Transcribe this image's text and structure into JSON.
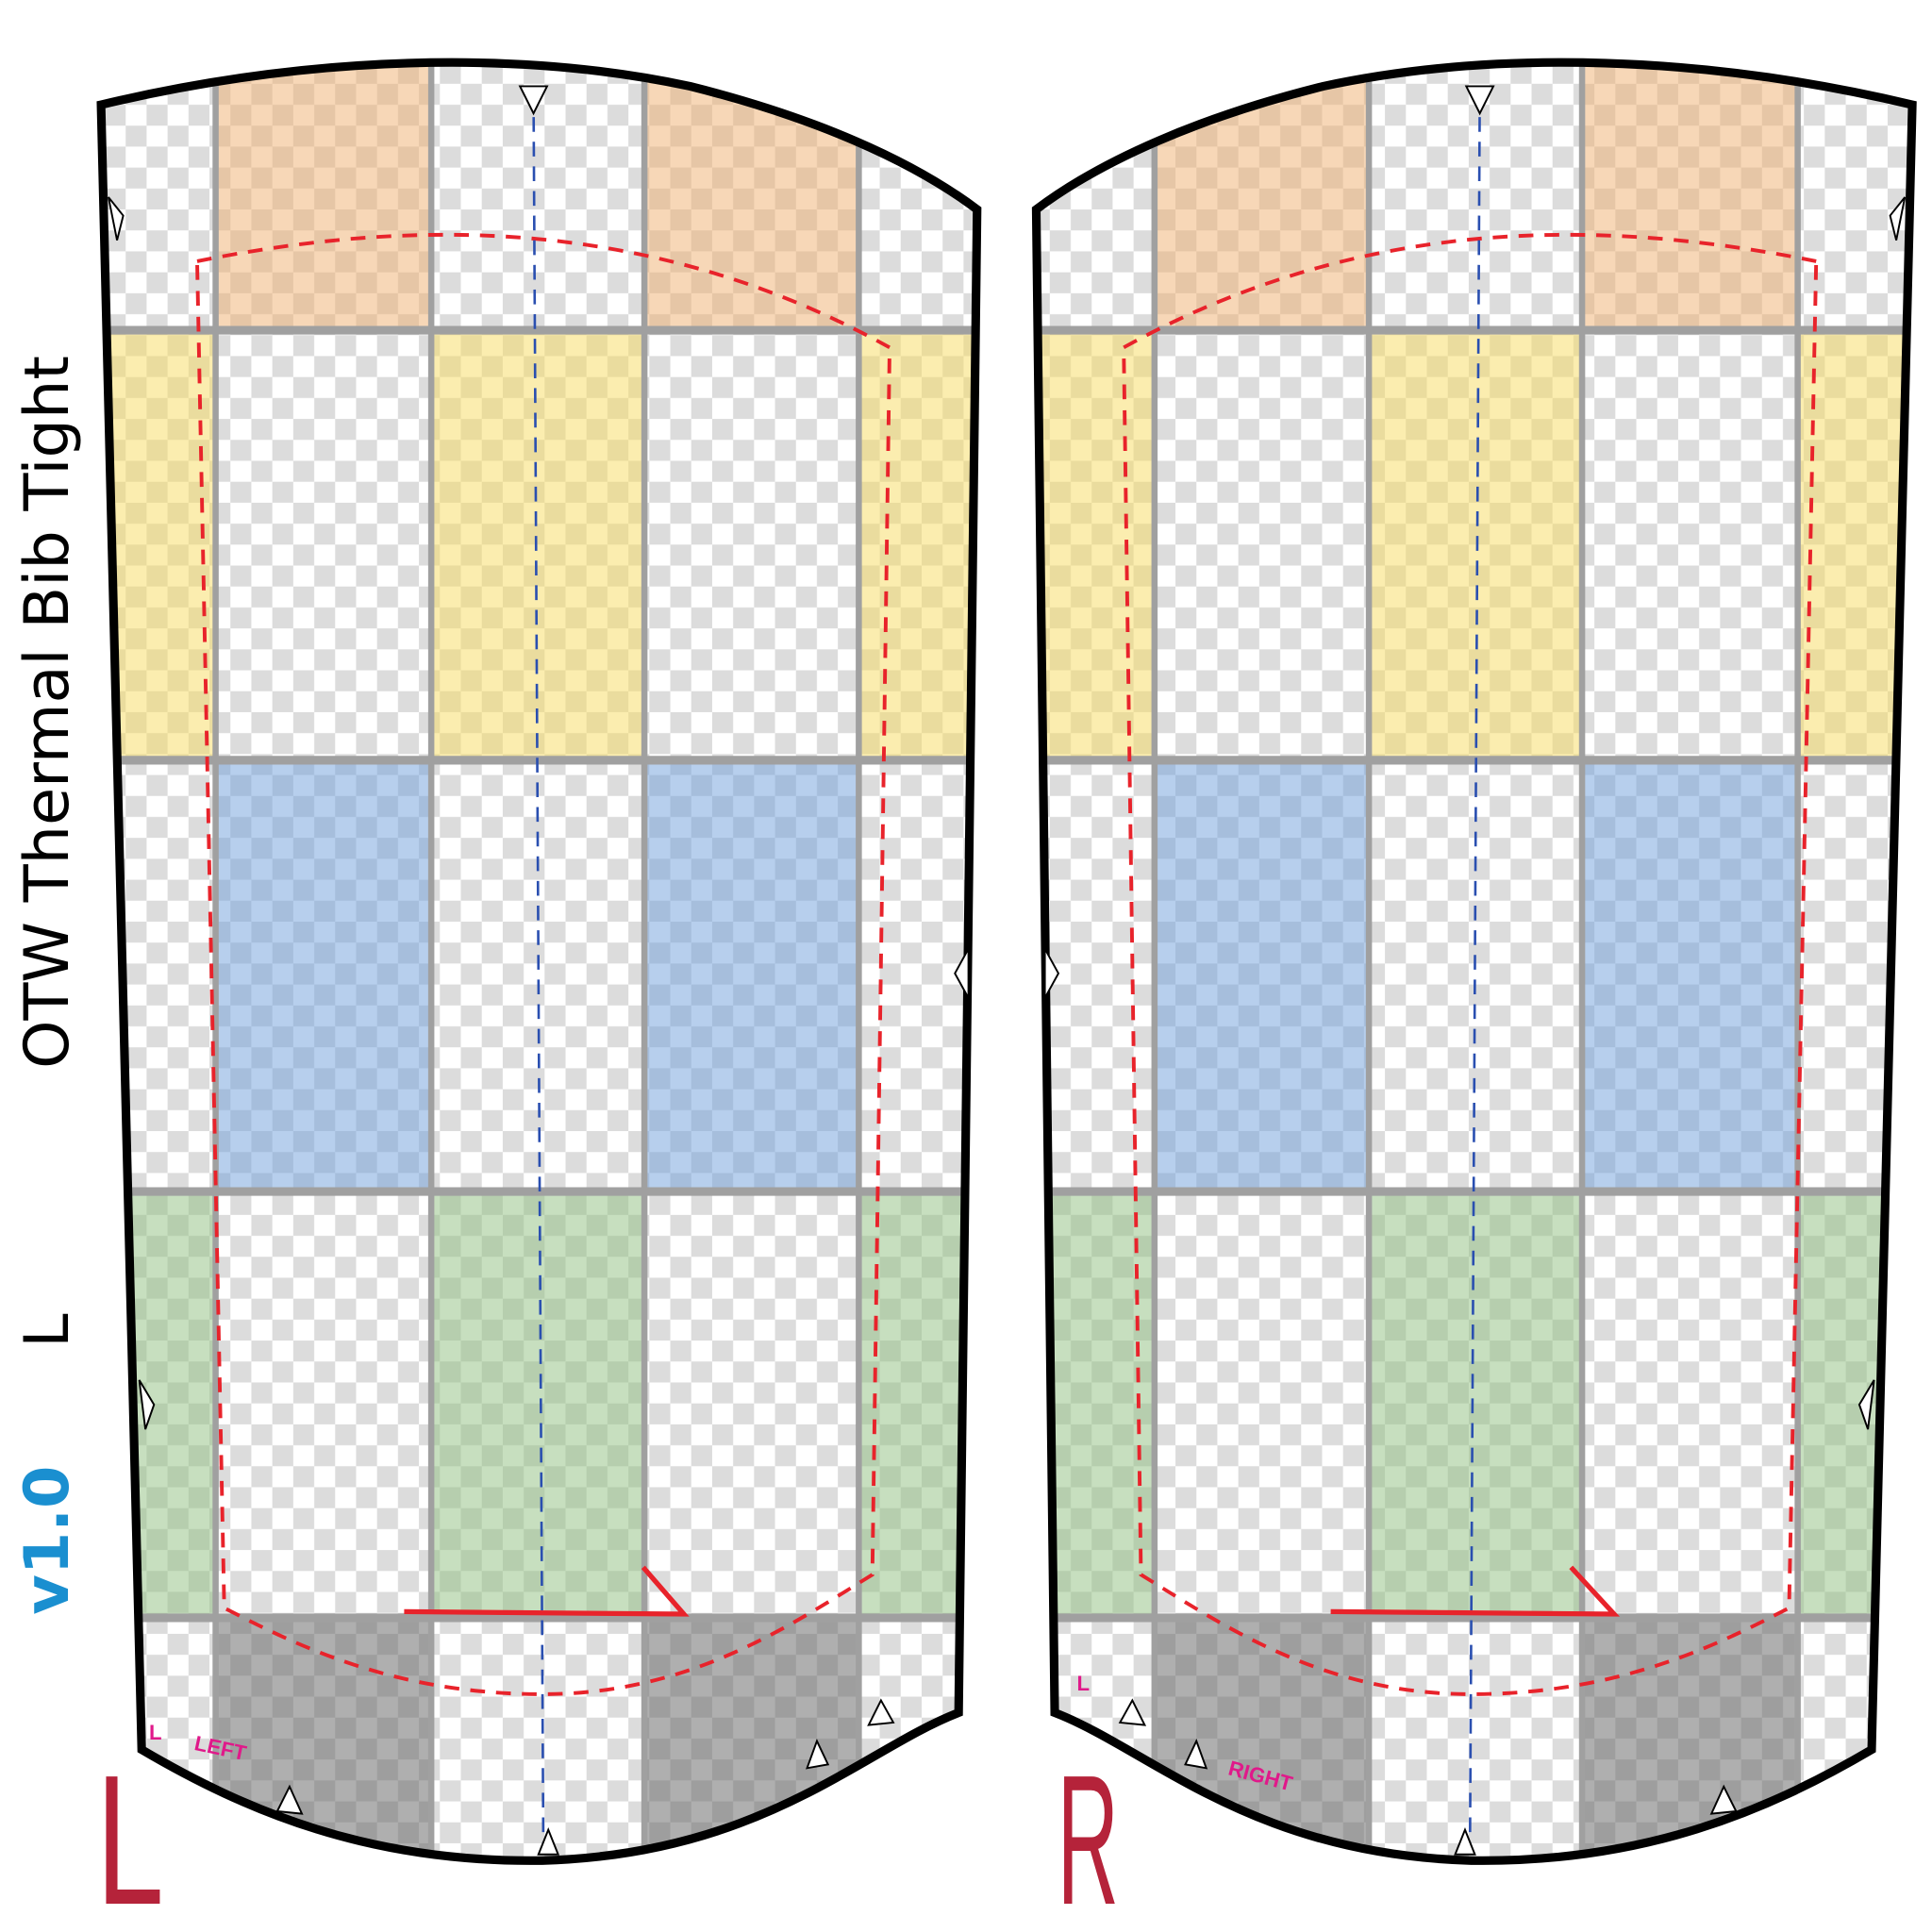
{
  "title": "OTW Thermal Bib Tight",
  "size": "L",
  "version": "v1.0",
  "pieces": [
    {
      "label": "L",
      "tags": [
        "L",
        "LEFT"
      ]
    },
    {
      "label": "R",
      "tags": [
        "L",
        "RIGHT"
      ]
    }
  ]
}
